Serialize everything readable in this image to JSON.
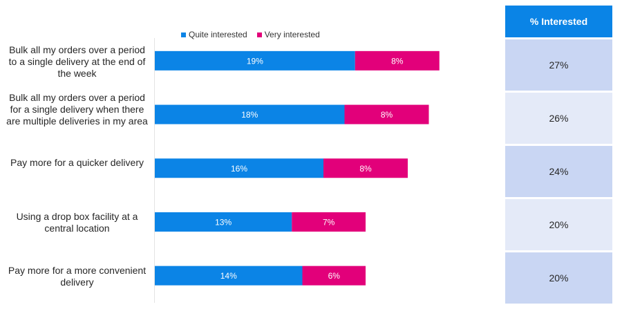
{
  "legend": {
    "quite_label": "Quite interested",
    "very_label": "Very interested"
  },
  "colors": {
    "quite": "#0b84e6",
    "very": "#e2007a",
    "header": "#0a84e6",
    "row_dark": "#c9d6f3",
    "row_light": "#e4eaf8"
  },
  "table": {
    "header": "% Interested",
    "values": [
      "27%",
      "26%",
      "24%",
      "20%",
      "20%"
    ]
  },
  "chart_data": {
    "type": "bar",
    "orientation": "horizontal",
    "stacked": true,
    "categories": [
      "Bulk all my orders over a period to a single delivery at the end of the week",
      "Bulk all my orders over a period for a single delivery when there are multiple deliveries in my area",
      "Pay more for a quicker delivery",
      "Using a drop box facility at a central location",
      "Pay more for a more convenient delivery"
    ],
    "series": [
      {
        "name": "Quite interested",
        "values": [
          19,
          18,
          16,
          13,
          14
        ],
        "labels": [
          "19%",
          "18%",
          "16%",
          "13%",
          "14%"
        ]
      },
      {
        "name": "Very interested",
        "values": [
          8,
          8,
          8,
          7,
          6
        ],
        "labels": [
          "8%",
          "8%",
          "8%",
          "7%",
          "6%"
        ]
      }
    ],
    "legend_position": "top",
    "grid": false
  }
}
